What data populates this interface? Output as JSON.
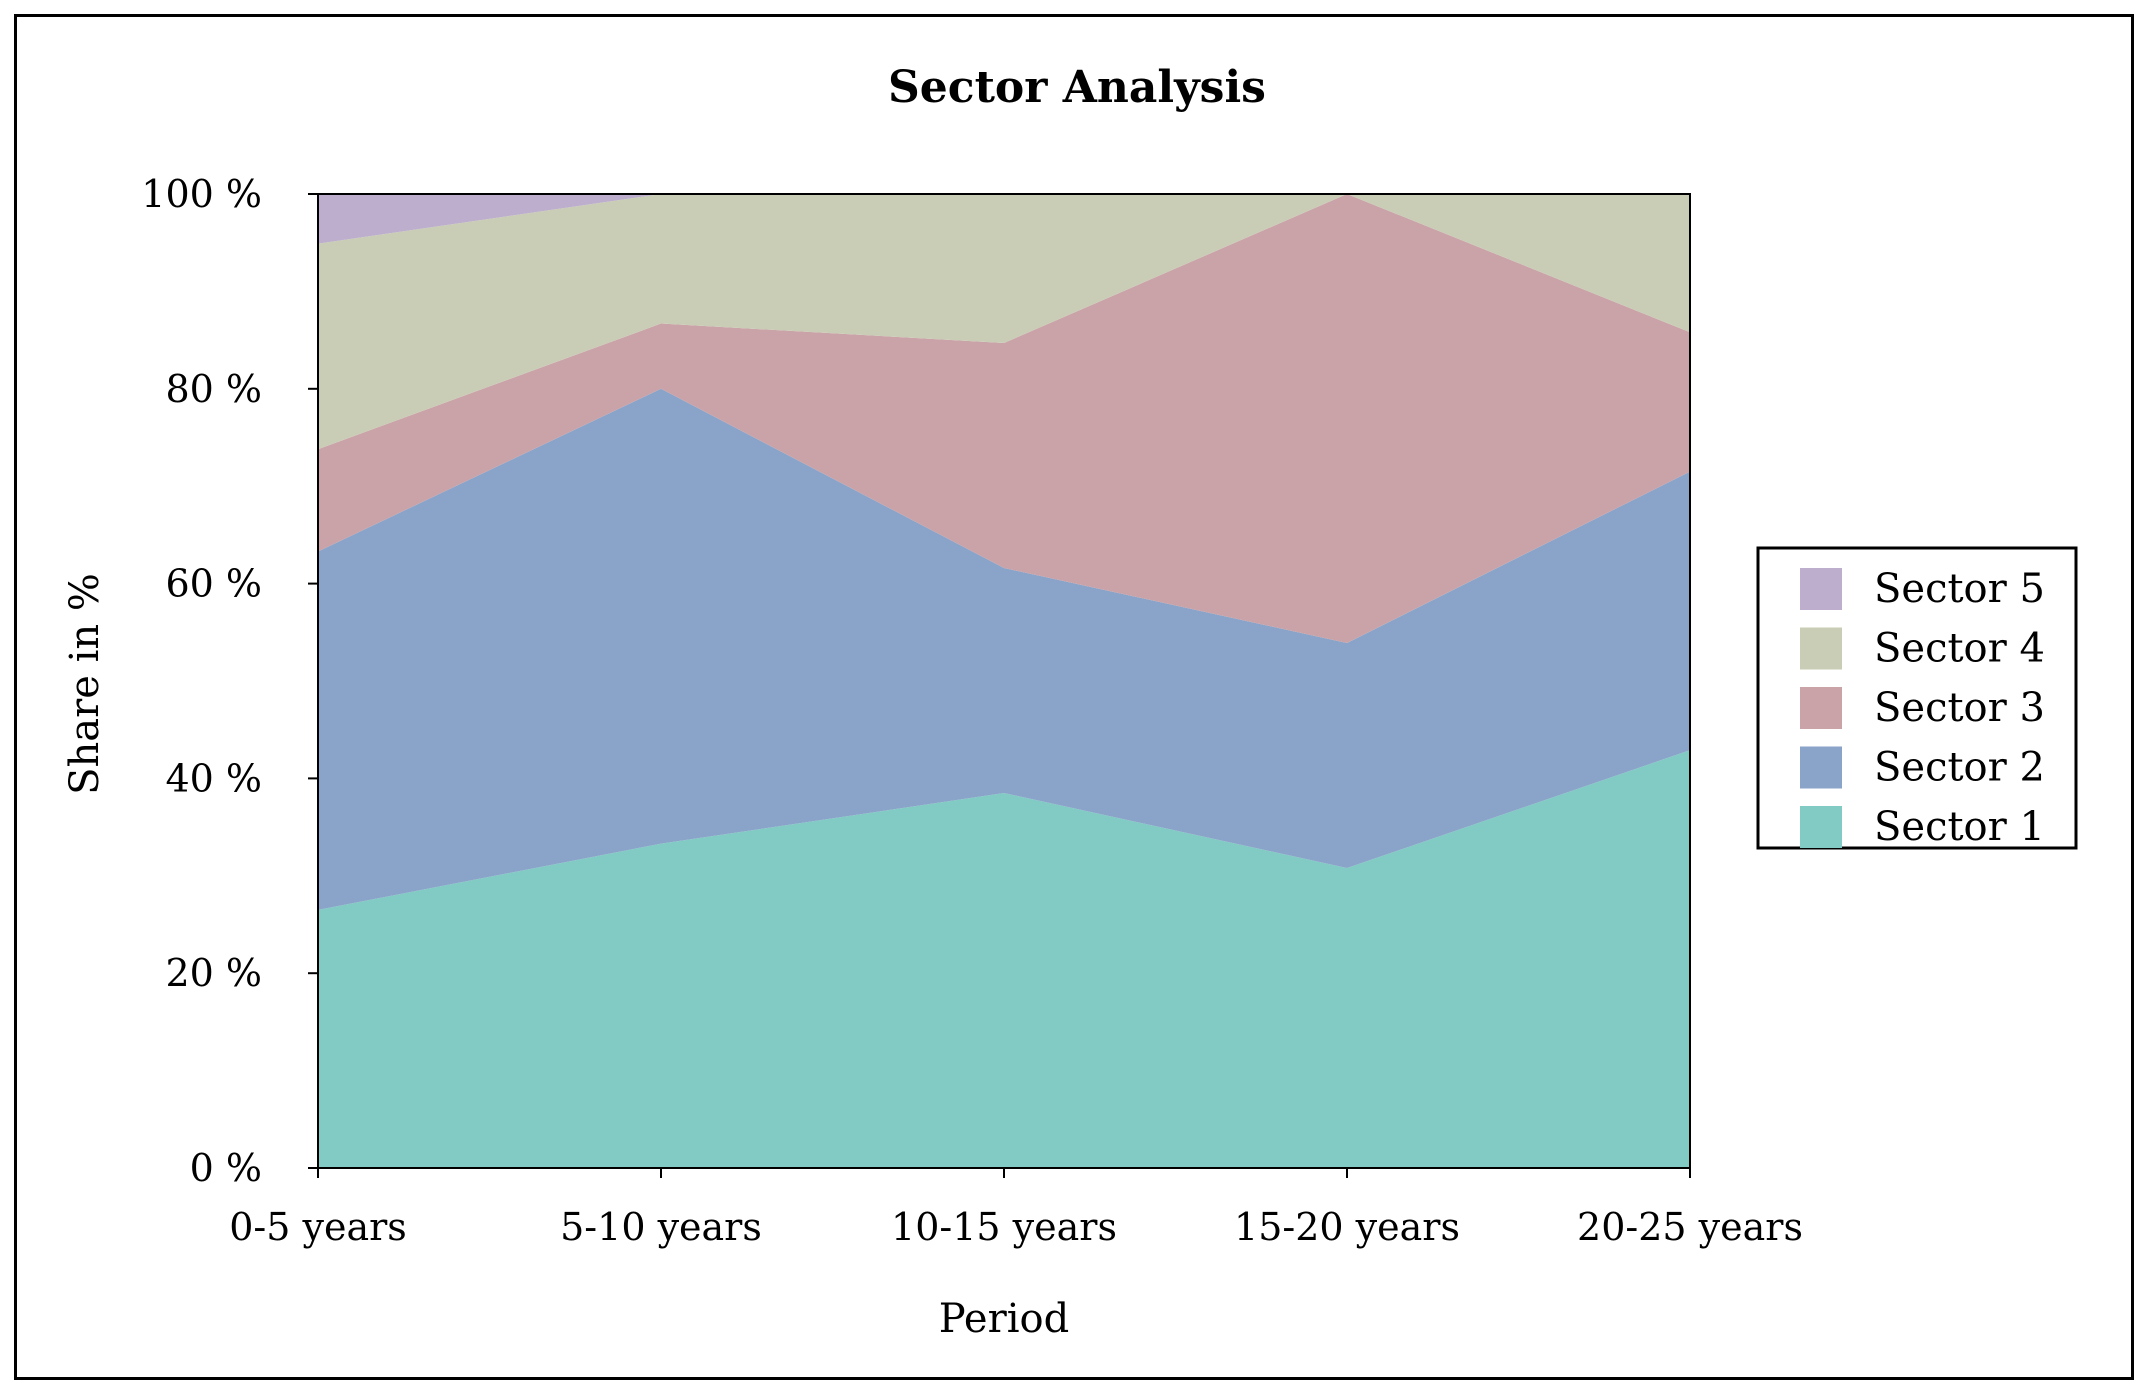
{
  "chart_data": {
    "type": "area",
    "stacked": true,
    "normalized": true,
    "title": "Sector Analysis",
    "xlabel": "Period",
    "ylabel": "Share in %",
    "categories": [
      "0-5 years",
      "5-10 years",
      "10-15 years",
      "15-20 years",
      "20-25 years"
    ],
    "yticks": [
      "0 %",
      "20 %",
      "40 %",
      "60 %",
      "80 %",
      "100 %"
    ],
    "ylim": [
      0,
      100
    ],
    "legend_position": "right",
    "grid": false,
    "series": [
      {
        "name": "Sector 1",
        "color": "#82cbc4",
        "values": [
          26.5,
          33.3,
          38.5,
          30.8,
          42.9
        ]
      },
      {
        "name": "Sector 2",
        "color": "#8aa3c9",
        "values": [
          36.8,
          46.7,
          23.1,
          23.1,
          28.6
        ]
      },
      {
        "name": "Sector 3",
        "color": "#caa3a8",
        "values": [
          10.5,
          6.7,
          23.1,
          46.1,
          14.3
        ]
      },
      {
        "name": "Sector 4",
        "color": "#cacdb6",
        "values": [
          21.1,
          13.3,
          15.3,
          0.0,
          14.2
        ]
      },
      {
        "name": "Sector 5",
        "color": "#bcaecc",
        "values": [
          5.1,
          0.0,
          0.0,
          0.0,
          0.0
        ]
      }
    ]
  }
}
